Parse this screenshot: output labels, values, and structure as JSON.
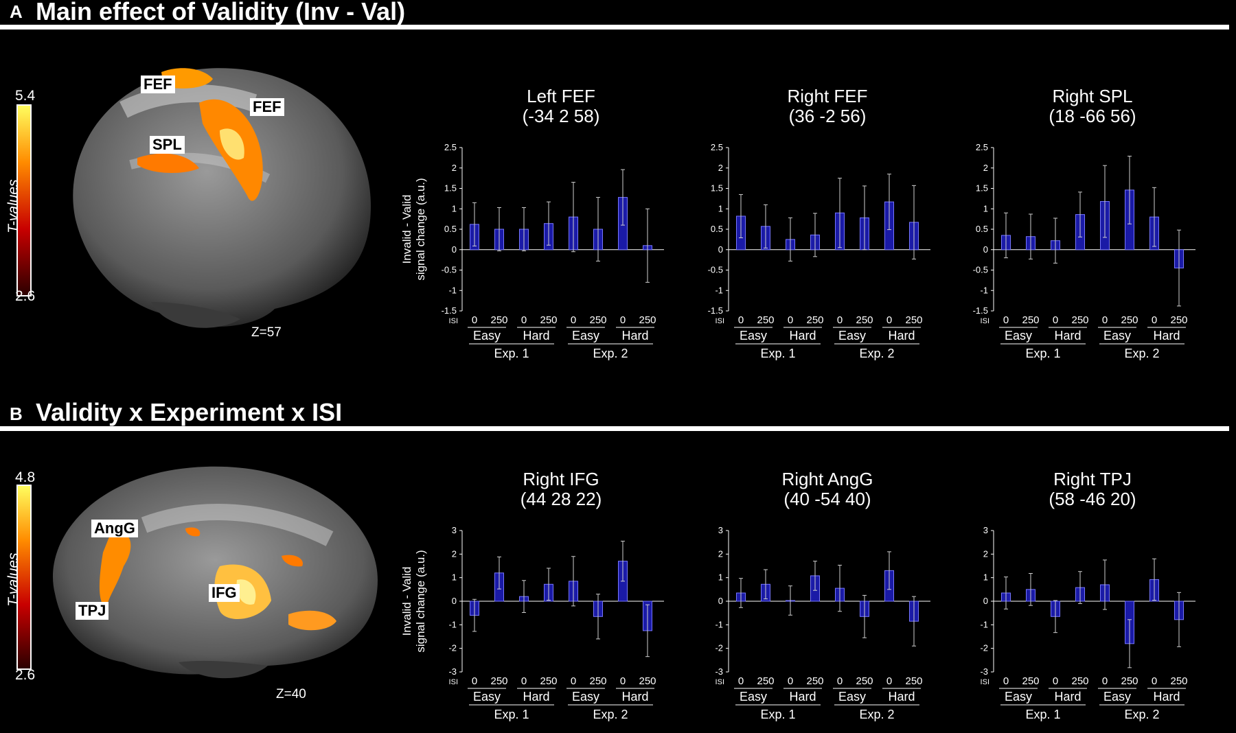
{
  "panels": [
    {
      "letter": "A",
      "title": "Main effect of Validity (Inv - Val)",
      "colorbar": {
        "title": "T-values",
        "max": "5.4",
        "min": "2.6"
      },
      "slice": "Z=57",
      "rois": [
        "FEF",
        "FEF",
        "SPL"
      ]
    },
    {
      "letter": "B",
      "title": "Validity x Experiment x ISI",
      "colorbar": {
        "title": "T-values",
        "max": "4.8",
        "min": "2.6"
      },
      "slice": "Z=40",
      "rois": [
        "AngG",
        "TPJ",
        "IFG"
      ]
    }
  ],
  "axis_text": {
    "ylabel_line1": "Invalid - Valid",
    "ylabel_line2": "signal change (a.u.)",
    "isi_label": "ISI",
    "isi_ticks": [
      "0",
      "250",
      "0",
      "250",
      "0",
      "250",
      "0",
      "250"
    ],
    "difficulty": [
      "Easy",
      "Hard",
      "Easy",
      "Hard"
    ],
    "experiments": [
      "Exp. 1",
      "Exp. 2"
    ]
  },
  "colors": {
    "bar": "#1a1aa6",
    "bar_edge": "#7878ff",
    "axis": "#ffffff",
    "background": "#000000"
  },
  "chart_data": [
    {
      "type": "bar",
      "title": "Left FEF",
      "subtitle": "(-34 2 58)",
      "categories": [
        "Exp. 1 Easy 0",
        "Exp. 1 Easy 250",
        "Exp. 1 Hard 0",
        "Exp. 1 Hard 250",
        "Exp. 2 Easy 0",
        "Exp. 2 Easy 250",
        "Exp. 2 Hard 0",
        "Exp. 2 Hard 250"
      ],
      "values": [
        0.62,
        0.5,
        0.5,
        0.64,
        0.8,
        0.5,
        1.28,
        0.1
      ],
      "error": [
        0.53,
        0.53,
        0.53,
        0.53,
        0.85,
        0.78,
        0.68,
        0.9
      ],
      "ylim": [
        -1.5,
        2.5
      ],
      "yticks": [
        "2.5",
        "2",
        "1.5",
        "1",
        "0.5",
        "0",
        "-0.5",
        "-1",
        "-1.5"
      ],
      "ylabel": "Invalid - Valid signal change (a.u.)"
    },
    {
      "type": "bar",
      "title": "Right FEF",
      "subtitle": "(36 -2 56)",
      "categories": [
        "Exp. 1 Easy 0",
        "Exp. 1 Easy 250",
        "Exp. 1 Hard 0",
        "Exp. 1 Hard 250",
        "Exp. 2 Easy 0",
        "Exp. 2 Easy 250",
        "Exp. 2 Hard 0",
        "Exp. 2 Hard 250"
      ],
      "values": [
        0.82,
        0.57,
        0.25,
        0.36,
        0.9,
        0.78,
        1.17,
        0.67
      ],
      "error": [
        0.53,
        0.53,
        0.53,
        0.53,
        0.85,
        0.78,
        0.68,
        0.9
      ],
      "ylim": [
        -1.5,
        2.5
      ],
      "yticks": [
        "2.5",
        "2",
        "1.5",
        "1",
        "0.5",
        "0",
        "-0.5",
        "-1",
        "-1.5"
      ]
    },
    {
      "type": "bar",
      "title": "Right SPL",
      "subtitle": "(18 -66 56)",
      "categories": [
        "Exp. 1 Easy 0",
        "Exp. 1 Easy 250",
        "Exp. 1 Hard 0",
        "Exp. 1 Hard 250",
        "Exp. 2 Easy 0",
        "Exp. 2 Easy 250",
        "Exp. 2 Hard 0",
        "Exp. 2 Hard 250"
      ],
      "values": [
        0.35,
        0.32,
        0.22,
        0.86,
        1.18,
        1.46,
        0.8,
        -0.45
      ],
      "error": [
        0.55,
        0.55,
        0.55,
        0.55,
        0.88,
        0.83,
        0.72,
        0.93
      ],
      "ylim": [
        -1.5,
        2.5
      ],
      "yticks": [
        "2.5",
        "2",
        "1.5",
        "1",
        "0.5",
        "0",
        "-0.5",
        "-1",
        "-1.5"
      ]
    },
    {
      "type": "bar",
      "title": "Right IFG",
      "subtitle": "(44 28 22)",
      "categories": [
        "Exp. 1 Easy 0",
        "Exp. 1 Easy 250",
        "Exp. 1 Hard 0",
        "Exp. 1 Hard 250",
        "Exp. 2 Easy 0",
        "Exp. 2 Easy 250",
        "Exp. 2 Hard 0",
        "Exp. 2 Hard 250"
      ],
      "values": [
        -0.6,
        1.2,
        0.2,
        0.72,
        0.85,
        -0.65,
        1.7,
        -1.25
      ],
      "error": [
        0.68,
        0.68,
        0.68,
        0.68,
        1.05,
        0.95,
        0.85,
        1.1
      ],
      "ylim": [
        -3,
        3
      ],
      "yticks": [
        "3",
        "2",
        "1",
        "0",
        "-1",
        "-2",
        "-3"
      ],
      "ylabel": "Invalid - Valid signal change (a.u.)"
    },
    {
      "type": "bar",
      "title": "Right AngG",
      "subtitle": "(40 -54 40)",
      "categories": [
        "Exp. 1 Easy 0",
        "Exp. 1 Easy 250",
        "Exp. 1 Hard 0",
        "Exp. 1 Hard 250",
        "Exp. 2 Easy 0",
        "Exp. 2 Easy 250",
        "Exp. 2 Hard 0",
        "Exp. 2 Hard 250"
      ],
      "values": [
        0.35,
        0.72,
        0.03,
        1.08,
        0.55,
        -0.65,
        1.3,
        -0.85
      ],
      "error": [
        0.62,
        0.62,
        0.62,
        0.62,
        0.98,
        0.9,
        0.8,
        1.05
      ],
      "ylim": [
        -3,
        3
      ],
      "yticks": [
        "3",
        "2",
        "1",
        "0",
        "-1",
        "-2",
        "-3"
      ]
    },
    {
      "type": "bar",
      "title": "Right TPJ",
      "subtitle": "(58 -46 20)",
      "categories": [
        "Exp. 1 Easy 0",
        "Exp. 1 Easy 250",
        "Exp. 1 Hard 0",
        "Exp. 1 Hard 250",
        "Exp. 2 Easy 0",
        "Exp. 2 Easy 250",
        "Exp. 2 Hard 0",
        "Exp. 2 Hard 250"
      ],
      "values": [
        0.35,
        0.5,
        -0.65,
        0.58,
        0.7,
        -1.8,
        0.92,
        -0.78
      ],
      "error": [
        0.68,
        0.68,
        0.68,
        0.68,
        1.05,
        1.02,
        0.88,
        1.15
      ],
      "ylim": [
        -3,
        3
      ],
      "yticks": [
        "3",
        "2",
        "1",
        "0",
        "-1",
        "-2",
        "-3"
      ]
    }
  ]
}
